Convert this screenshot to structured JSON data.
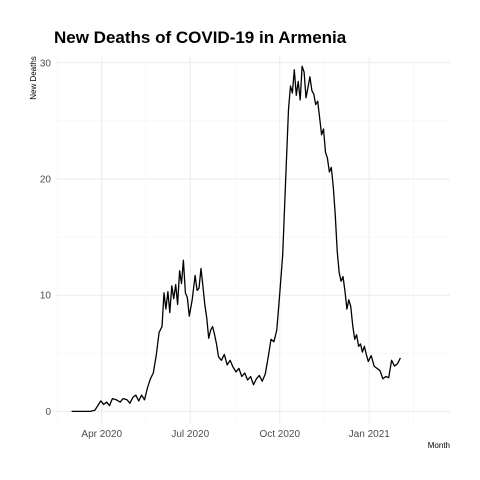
{
  "chart_data": {
    "type": "line",
    "title": "New Deaths of COVID-19 in Armenia",
    "xlabel": "Month",
    "ylabel": "New Deaths",
    "ylim": [
      -1,
      30.5
    ],
    "xlim": [
      "2020-02-14",
      "2021-03-25"
    ],
    "y_ticks": [
      0,
      10,
      20,
      30
    ],
    "x_ticks": [
      {
        "date": "2020-04-01",
        "label": "Apr 2020"
      },
      {
        "date": "2020-07-01",
        "label": "Jul 2020"
      },
      {
        "date": "2020-10-01",
        "label": "Oct 2020"
      },
      {
        "date": "2021-01-01",
        "label": "Jan 2021"
      }
    ],
    "grid": true,
    "legend": "none",
    "series": [
      {
        "color": "#000000",
        "points": [
          [
            "2020-03-01",
            0
          ],
          [
            "2020-03-10",
            0
          ],
          [
            "2020-03-20",
            0
          ],
          [
            "2020-03-25",
            0.1
          ],
          [
            "2020-03-28",
            0.5
          ],
          [
            "2020-03-31",
            0.9
          ],
          [
            "2020-04-03",
            0.6
          ],
          [
            "2020-04-06",
            0.8
          ],
          [
            "2020-04-09",
            0.5
          ],
          [
            "2020-04-12",
            1.1
          ],
          [
            "2020-04-16",
            1.0
          ],
          [
            "2020-04-20",
            0.8
          ],
          [
            "2020-04-23",
            1.1
          ],
          [
            "2020-04-27",
            1.0
          ],
          [
            "2020-04-30",
            0.7
          ],
          [
            "2020-05-03",
            1.2
          ],
          [
            "2020-05-06",
            1.4
          ],
          [
            "2020-05-09",
            0.9
          ],
          [
            "2020-05-12",
            1.4
          ],
          [
            "2020-05-15",
            1.0
          ],
          [
            "2020-05-18",
            2.0
          ],
          [
            "2020-05-21",
            2.8
          ],
          [
            "2020-05-24",
            3.3
          ],
          [
            "2020-05-27",
            4.8
          ],
          [
            "2020-05-30",
            6.8
          ],
          [
            "2020-06-02",
            7.3
          ],
          [
            "2020-06-04",
            10.2
          ],
          [
            "2020-06-06",
            8.8
          ],
          [
            "2020-06-08",
            10.3
          ],
          [
            "2020-06-10",
            8.5
          ],
          [
            "2020-06-12",
            10.8
          ],
          [
            "2020-06-14",
            9.7
          ],
          [
            "2020-06-16",
            10.9
          ],
          [
            "2020-06-18",
            9.2
          ],
          [
            "2020-06-20",
            12.1
          ],
          [
            "2020-06-22",
            11.0
          ],
          [
            "2020-06-24",
            13.0
          ],
          [
            "2020-06-26",
            10.2
          ],
          [
            "2020-06-28",
            9.8
          ],
          [
            "2020-06-30",
            8.2
          ],
          [
            "2020-07-03",
            9.6
          ],
          [
            "2020-07-06",
            11.7
          ],
          [
            "2020-07-08",
            10.4
          ],
          [
            "2020-07-10",
            10.6
          ],
          [
            "2020-07-12",
            12.3
          ],
          [
            "2020-07-14",
            10.8
          ],
          [
            "2020-07-16",
            9.2
          ],
          [
            "2020-07-18",
            8.0
          ],
          [
            "2020-07-20",
            6.3
          ],
          [
            "2020-07-22",
            7.0
          ],
          [
            "2020-07-24",
            7.3
          ],
          [
            "2020-07-26",
            6.6
          ],
          [
            "2020-07-28",
            5.8
          ],
          [
            "2020-07-30",
            4.7
          ],
          [
            "2020-08-02",
            4.4
          ],
          [
            "2020-08-05",
            4.9
          ],
          [
            "2020-08-08",
            4.0
          ],
          [
            "2020-08-11",
            4.4
          ],
          [
            "2020-08-14",
            3.8
          ],
          [
            "2020-08-17",
            3.4
          ],
          [
            "2020-08-20",
            3.7
          ],
          [
            "2020-08-23",
            3.0
          ],
          [
            "2020-08-26",
            3.3
          ],
          [
            "2020-08-29",
            2.7
          ],
          [
            "2020-09-01",
            3.0
          ],
          [
            "2020-09-04",
            2.3
          ],
          [
            "2020-09-07",
            2.8
          ],
          [
            "2020-09-10",
            3.1
          ],
          [
            "2020-09-13",
            2.6
          ],
          [
            "2020-09-16",
            3.2
          ],
          [
            "2020-09-19",
            4.6
          ],
          [
            "2020-09-22",
            6.2
          ],
          [
            "2020-09-25",
            6.0
          ],
          [
            "2020-09-28",
            7.0
          ],
          [
            "2020-10-01",
            10.2
          ],
          [
            "2020-10-04",
            13.5
          ],
          [
            "2020-10-07",
            19.8
          ],
          [
            "2020-10-10",
            26.0
          ],
          [
            "2020-10-12",
            28.0
          ],
          [
            "2020-10-14",
            27.4
          ],
          [
            "2020-10-16",
            29.4
          ],
          [
            "2020-10-18",
            27.2
          ],
          [
            "2020-10-20",
            28.4
          ],
          [
            "2020-10-22",
            26.8
          ],
          [
            "2020-10-24",
            29.7
          ],
          [
            "2020-10-26",
            29.2
          ],
          [
            "2020-10-28",
            27.0
          ],
          [
            "2020-10-30",
            27.9
          ],
          [
            "2020-11-01",
            28.8
          ],
          [
            "2020-11-03",
            27.6
          ],
          [
            "2020-11-05",
            27.3
          ],
          [
            "2020-11-07",
            26.4
          ],
          [
            "2020-11-09",
            26.7
          ],
          [
            "2020-11-11",
            25.3
          ],
          [
            "2020-11-13",
            23.8
          ],
          [
            "2020-11-15",
            24.3
          ],
          [
            "2020-11-17",
            22.3
          ],
          [
            "2020-11-19",
            21.8
          ],
          [
            "2020-11-21",
            20.6
          ],
          [
            "2020-11-23",
            21.0
          ],
          [
            "2020-11-25",
            19.3
          ],
          [
            "2020-11-27",
            17.0
          ],
          [
            "2020-11-29",
            13.8
          ],
          [
            "2020-12-01",
            12.0
          ],
          [
            "2020-12-03",
            11.2
          ],
          [
            "2020-12-05",
            11.6
          ],
          [
            "2020-12-07",
            10.4
          ],
          [
            "2020-12-09",
            8.8
          ],
          [
            "2020-12-11",
            9.6
          ],
          [
            "2020-12-13",
            9.0
          ],
          [
            "2020-12-15",
            7.4
          ],
          [
            "2020-12-17",
            6.2
          ],
          [
            "2020-12-19",
            6.6
          ],
          [
            "2020-12-21",
            5.6
          ],
          [
            "2020-12-23",
            5.8
          ],
          [
            "2020-12-25",
            5.1
          ],
          [
            "2020-12-27",
            5.6
          ],
          [
            "2020-12-29",
            4.9
          ],
          [
            "2020-12-31",
            4.3
          ],
          [
            "2021-01-03",
            4.8
          ],
          [
            "2021-01-06",
            3.9
          ],
          [
            "2021-01-09",
            3.7
          ],
          [
            "2021-01-12",
            3.5
          ],
          [
            "2021-01-15",
            2.8
          ],
          [
            "2021-01-18",
            3.0
          ],
          [
            "2021-01-21",
            2.9
          ],
          [
            "2021-01-24",
            4.4
          ],
          [
            "2021-01-27",
            3.9
          ],
          [
            "2021-01-30",
            4.1
          ],
          [
            "2021-02-02",
            4.6
          ]
        ]
      }
    ]
  }
}
